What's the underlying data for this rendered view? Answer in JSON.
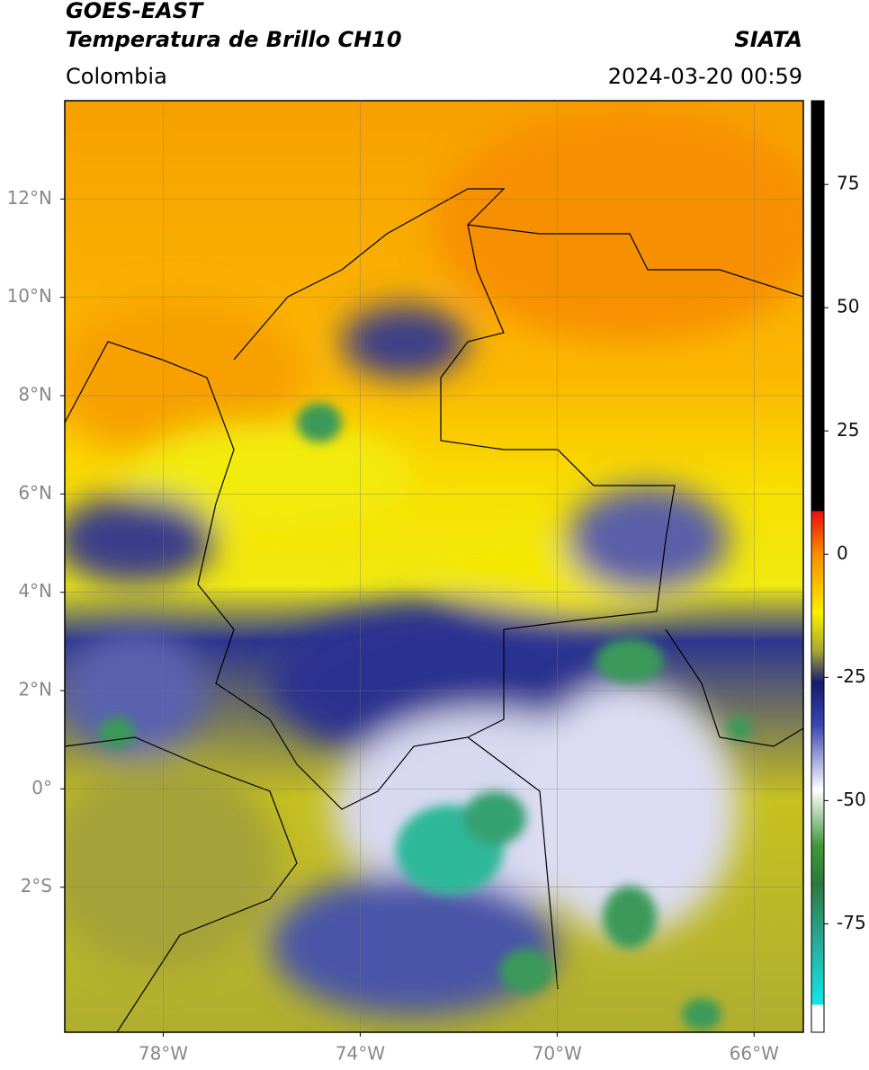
{
  "header": {
    "satellite": "GOES-EAST",
    "product": "Temperatura de Brillo CH10",
    "source": "SIATA",
    "region": "Colombia",
    "datetime": "2024-03-20 00:59"
  },
  "map": {
    "lat_range": [
      -4.95,
      14
    ],
    "lon_range": [
      -80,
      -65
    ],
    "lat_ticks": [
      {
        "value": 12,
        "label": "12°N"
      },
      {
        "value": 10,
        "label": "10°N"
      },
      {
        "value": 8,
        "label": "8°N"
      },
      {
        "value": 6,
        "label": "6°N"
      },
      {
        "value": 4,
        "label": "4°N"
      },
      {
        "value": 2,
        "label": "2°N"
      },
      {
        "value": 0,
        "label": "0°"
      },
      {
        "value": -2,
        "label": "2°S"
      }
    ],
    "lon_ticks": [
      {
        "value": -78,
        "label": "78°W"
      },
      {
        "value": -74,
        "label": "74°W"
      },
      {
        "value": -70,
        "label": "70°W"
      },
      {
        "value": -66,
        "label": "66°W"
      }
    ]
  },
  "colorbar": {
    "range": [
      -97,
      92
    ],
    "ticks": [
      75,
      50,
      25,
      0,
      -25,
      -50,
      -75
    ]
  }
}
